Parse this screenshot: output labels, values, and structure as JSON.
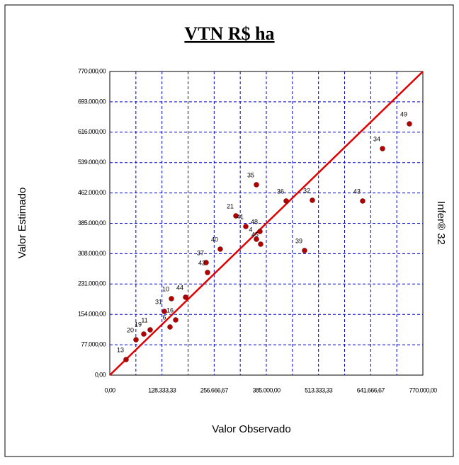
{
  "chart_data": {
    "type": "scatter",
    "title": "VTN R$ ha",
    "xlabel": "Valor Observado",
    "ylabel": "Valor Estimado",
    "side_label": "Infer® 32",
    "series": [
      {
        "color": "#b00000",
        "x": [
          40066,
          64454,
          83616,
          99294,
          134134,
          162006,
          148070,
          151554,
          186394,
          236912,
          240396,
          271752,
          310076,
          334464,
          360594,
          369304,
          360594,
          371046,
          433758,
          498212,
          479050,
          621894,
          670670,
          736866
        ],
        "values": [
          39490,
          89750,
          104110,
          114880,
          161550,
          140010,
          122060,
          193860,
          197450,
          285405,
          260275,
          319510,
          403875,
          376950,
          482855,
          364385,
          344640,
          332075,
          441570,
          443365,
          315920,
          441570,
          574400,
          637225
        ],
        "labels": [
          "13",
          "20",
          "19",
          "11",
          "31",
          "16",
          "6",
          "10",
          "44",
          "37",
          "42",
          "40",
          "21",
          "41",
          "35",
          "48",
          "4",
          "45",
          "36",
          "32",
          "39",
          "43",
          "34",
          "49"
        ]
      }
    ],
    "line_color": "#e00000",
    "xlim": [
      0,
      770000
    ],
    "ylim": [
      0,
      770000
    ],
    "xticks": [
      {
        "value": 0,
        "label": "0,00"
      },
      {
        "value": 128333.33,
        "label": "128.333,33"
      },
      {
        "value": 256666.67,
        "label": "256.666,67"
      },
      {
        "value": 385000,
        "label": "385.000,00"
      },
      {
        "value": 513333.33,
        "label": "513.333,33"
      },
      {
        "value": 641666.67,
        "label": "641.666,67"
      },
      {
        "value": 770000,
        "label": "770.000,00"
      }
    ],
    "yticks": [
      {
        "value": 0,
        "label": "0,00"
      },
      {
        "value": 77000,
        "label": "77.000,00"
      },
      {
        "value": 154000,
        "label": "154.000,00"
      },
      {
        "value": 231000,
        "label": "231.000,00"
      },
      {
        "value": 308000,
        "label": "308.000,00"
      },
      {
        "value": 385000,
        "label": "385.000,00"
      },
      {
        "value": 462000,
        "label": "462.000,00"
      },
      {
        "value": 539000,
        "label": "539.000,00"
      },
      {
        "value": 616000,
        "label": "616.000,00"
      },
      {
        "value": 693000,
        "label": "693.000,00"
      },
      {
        "value": 770000,
        "label": "770.000,00"
      }
    ],
    "grid": true,
    "grid_color": "#0000cc"
  }
}
